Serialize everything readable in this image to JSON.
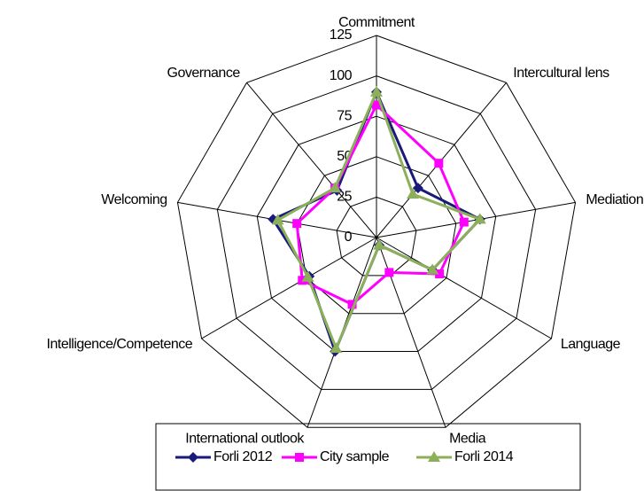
{
  "chart_data": {
    "type": "radar",
    "categories": [
      "Commitment",
      "Intercultural lens",
      "Mediation",
      "Language",
      "Media",
      "International outlook",
      "Intelligence/Competence",
      "Welcoming",
      "Governance"
    ],
    "series": [
      {
        "name": "Forli 2012",
        "color": "#1a1a7a",
        "marker": "diamond",
        "values": [
          90,
          40,
          65,
          40,
          5,
          75,
          48,
          65,
          38
        ]
      },
      {
        "name": "City sample",
        "color": "#ff00ff",
        "marker": "square",
        "values": [
          82,
          60,
          55,
          45,
          23,
          44,
          53,
          50,
          40
        ]
      },
      {
        "name": "Forli 2014",
        "color": "#8cb05a",
        "marker": "triangle",
        "values": [
          90,
          35,
          65,
          40,
          5,
          73,
          49,
          62,
          40
        ]
      }
    ],
    "ylim": [
      0,
      125
    ],
    "yticks": [
      0,
      25,
      50,
      75,
      100,
      125
    ],
    "grid": true,
    "legend": "bottom"
  }
}
